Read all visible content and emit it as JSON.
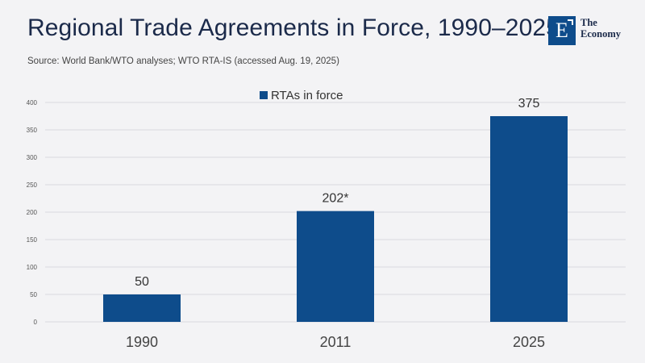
{
  "header": {
    "title": "Regional Trade Agreements in Force, 1990–2025",
    "source": "Source: World Bank/WTO analyses; WTO RTA-IS (accessed Aug. 19, 2025)"
  },
  "logo": {
    "mark": "E",
    "line1": "The",
    "line2": "Economy"
  },
  "colors": {
    "bar": "#0e4c8b",
    "grid": "#d9d9de",
    "title": "#1b2a4a"
  },
  "chart_data": {
    "type": "bar",
    "categories": [
      "1990",
      "2011",
      "2025"
    ],
    "series": [
      {
        "name": "RTAs in force",
        "values": [
          50,
          202,
          375
        ],
        "data_labels": [
          "50",
          "202*",
          "375"
        ]
      }
    ],
    "yticks": [
      "0",
      "50",
      "100",
      "150",
      "200",
      "250",
      "300",
      "350",
      "400"
    ],
    "ylim": [
      0,
      400
    ],
    "grid": true,
    "legend_position": "top-center"
  }
}
